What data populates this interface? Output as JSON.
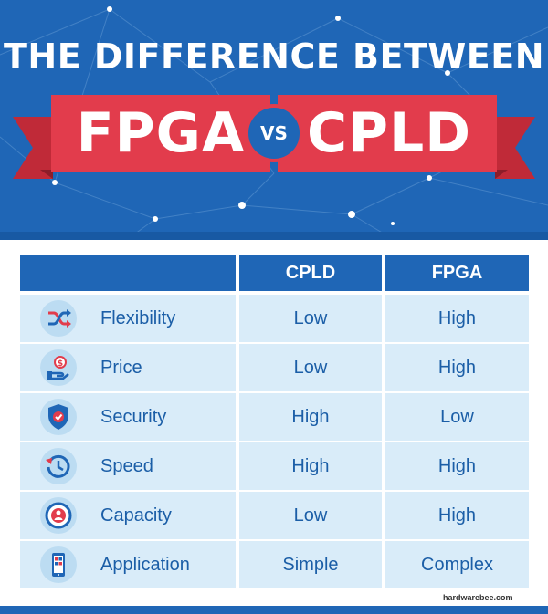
{
  "header": {
    "title": "THE DIFFERENCE BETWEEN",
    "left_term": "FPGA",
    "vs": "VS",
    "right_term": "CPLD"
  },
  "table": {
    "columns": [
      "",
      "CPLD",
      "FPGA"
    ],
    "rows": [
      {
        "icon": "shuffle-icon",
        "label": "Flexibility",
        "cpld": "Low",
        "fpga": "High"
      },
      {
        "icon": "price-hand-icon",
        "label": "Price",
        "cpld": "Low",
        "fpga": "High"
      },
      {
        "icon": "shield-check-icon",
        "label": "Security",
        "cpld": "High",
        "fpga": "Low"
      },
      {
        "icon": "clock-history-icon",
        "label": "Speed",
        "cpld": "High",
        "fpga": "High"
      },
      {
        "icon": "capacity-person-icon",
        "label": "Capacity",
        "cpld": "Low",
        "fpga": "High"
      },
      {
        "icon": "mobile-app-icon",
        "label": "Application",
        "cpld": "Simple",
        "fpga": "Complex"
      }
    ]
  },
  "footer": {
    "source": "hardwarebee.com"
  },
  "colors": {
    "header_blue": "#1f66b6",
    "ribbon_red": "#e23c4c",
    "cell_blue": "#d9ecf9",
    "text_blue": "#1b5ea7"
  }
}
